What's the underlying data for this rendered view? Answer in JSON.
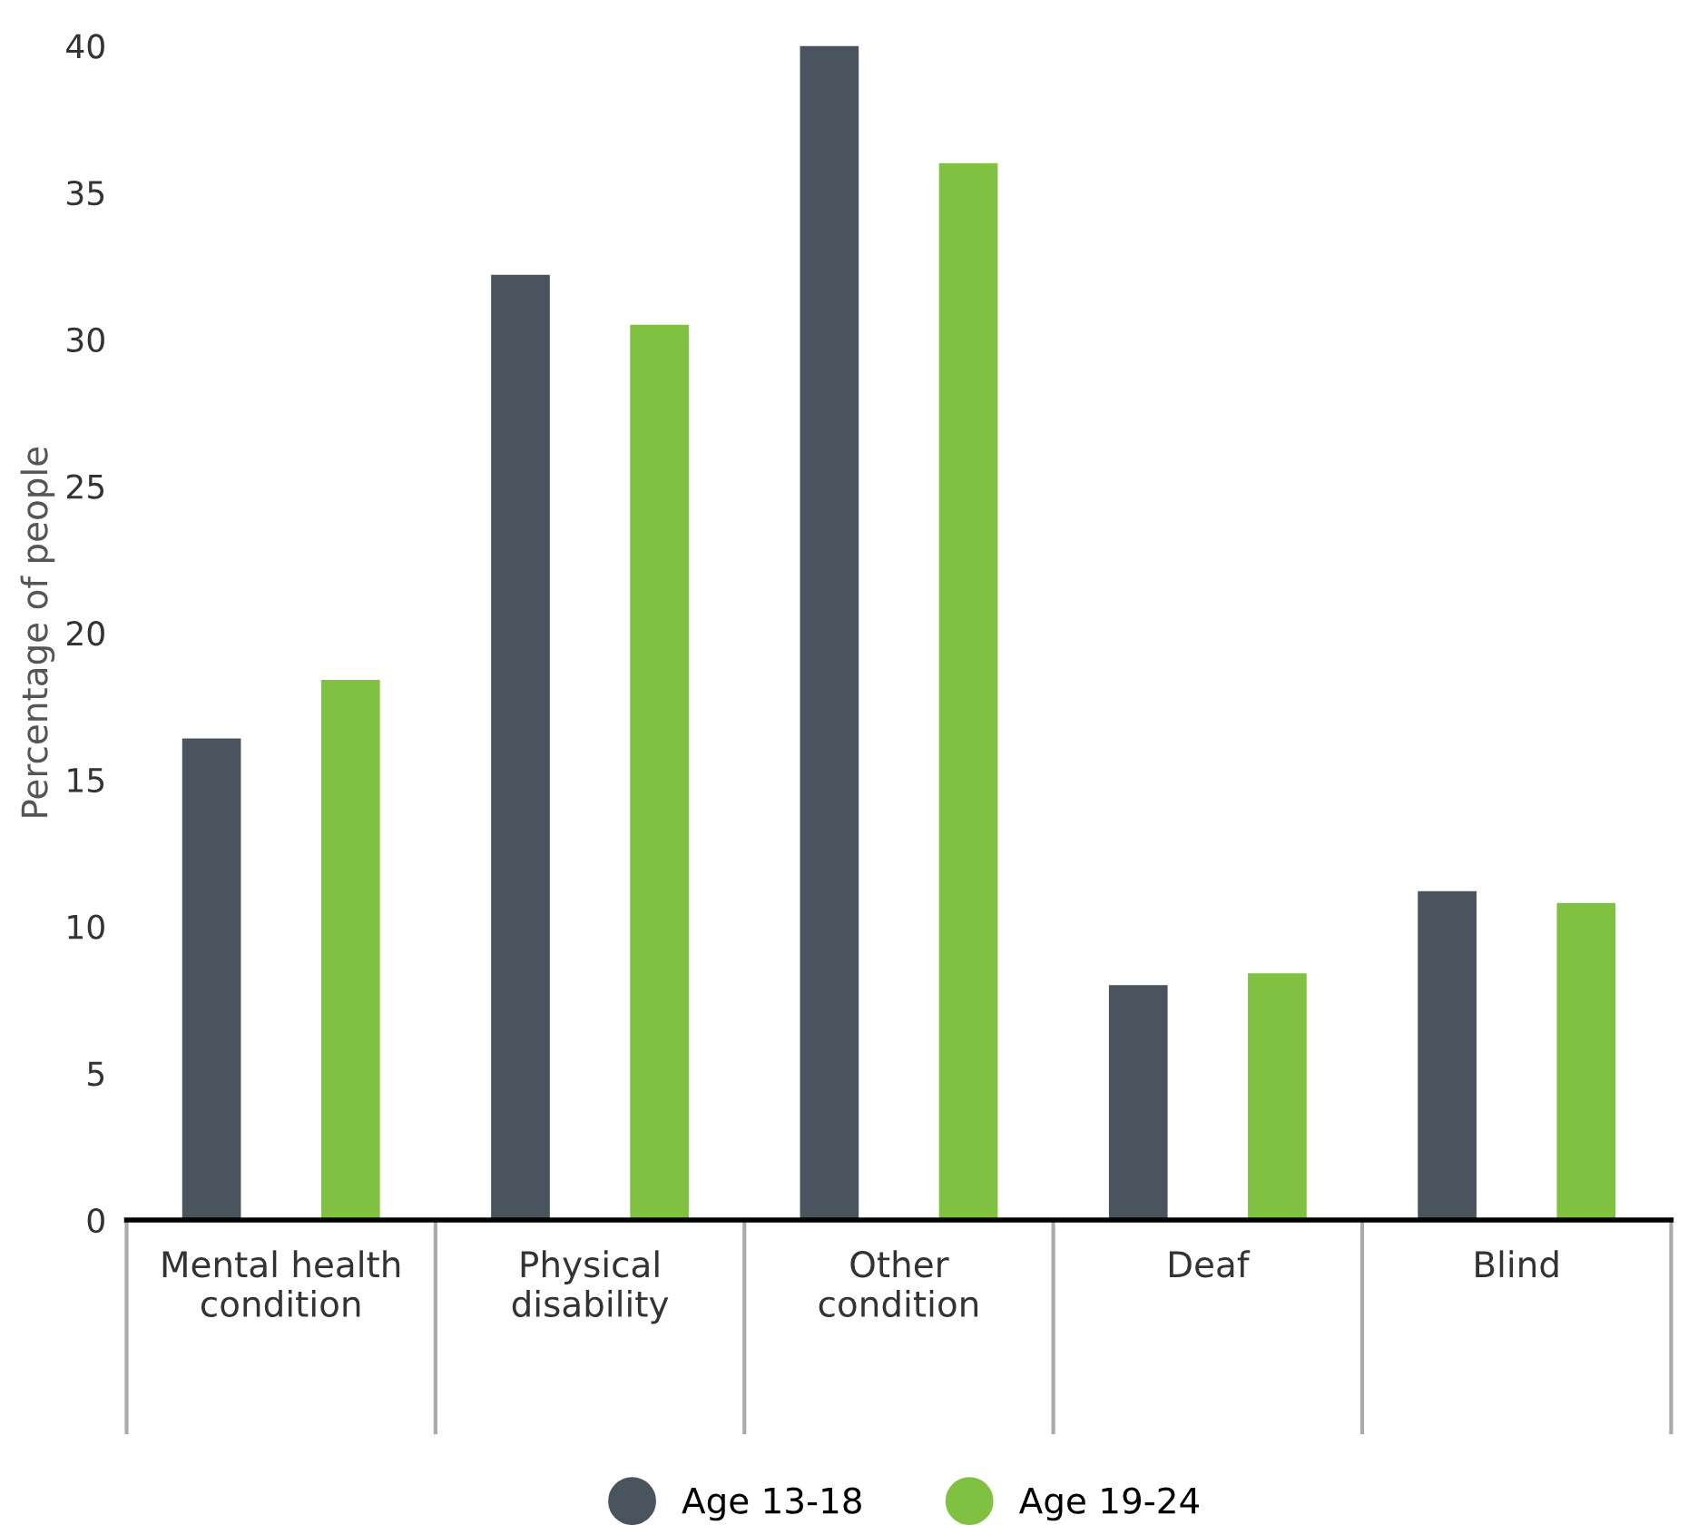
{
  "chart_data": {
    "type": "bar",
    "ylabel": "Percentage of people",
    "categories": [
      "Mental health\ncondition",
      "Physical\ndisability",
      "Other\ncondition",
      "Deaf",
      "Blind"
    ],
    "series": [
      {
        "name": "Age 13-18",
        "color": "#4a545e",
        "values": [
          16.4,
          32.2,
          40,
          8.0,
          11.2
        ]
      },
      {
        "name": "Age 19-24",
        "color": "#80c141",
        "values": [
          18.4,
          30.5,
          36,
          8.4,
          10.8
        ]
      }
    ],
    "ylim": [
      0,
      40
    ],
    "yticks": [
      0,
      5,
      10,
      15,
      20,
      25,
      30,
      35,
      40
    ],
    "grid": false,
    "legend": "bottom"
  }
}
